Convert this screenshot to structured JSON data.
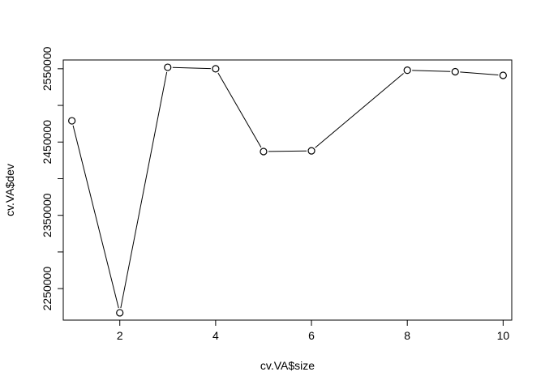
{
  "chart_data": {
    "type": "line",
    "title": "",
    "xlabel": "cv.VA$size",
    "ylabel": "cv.VA$dev",
    "x": [
      1,
      2,
      3,
      4,
      5,
      6,
      8,
      9,
      10
    ],
    "series": [
      {
        "values": [
          2479000,
          2217000,
          2552000,
          2550000,
          2437000,
          2438000,
          2548000,
          2546000,
          2541000
        ]
      }
    ],
    "xlim": [
      0.82,
      10.18
    ],
    "ylim": [
      2207000,
      2562000
    ],
    "xticks": [
      2,
      4,
      6,
      8,
      10
    ],
    "xtick_labels": [
      "2",
      "4",
      "6",
      "8",
      "10"
    ],
    "yticks": [
      2250000,
      2300000,
      2350000,
      2400000,
      2450000,
      2500000,
      2550000
    ],
    "ytick_labels": [
      "2250000",
      "",
      "2350000",
      "",
      "2450000",
      "",
      "2550000"
    ],
    "marker": "open-circle",
    "line_color": "#000000",
    "grid": false,
    "legend": "none"
  }
}
